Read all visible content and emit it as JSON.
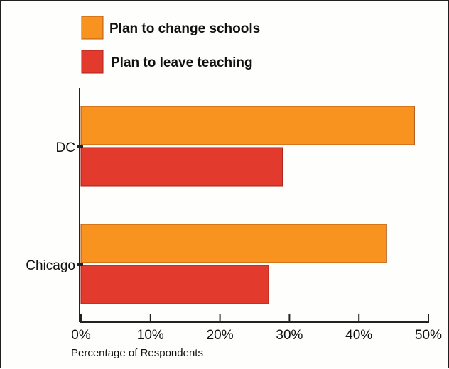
{
  "chart_data": {
    "type": "bar",
    "orientation": "horizontal",
    "categories": [
      "DC",
      "Chicago"
    ],
    "series": [
      {
        "name": "Plan to change schools",
        "values": [
          48,
          44
        ],
        "color": "#f7931e"
      },
      {
        "name": "Plan to leave teaching",
        "values": [
          29,
          27
        ],
        "color": "#e23b2e"
      }
    ],
    "xlabel": "Percentage of Respondents",
    "xlim": [
      0,
      50
    ],
    "xticks": [
      "0%",
      "10%",
      "20%",
      "30%",
      "40%",
      "50%"
    ],
    "grid": false,
    "legend": "top-left"
  },
  "colors": {
    "bar_outline": "#b5581a",
    "bar_outline_red": "#a8231a",
    "axis": "#222222"
  }
}
